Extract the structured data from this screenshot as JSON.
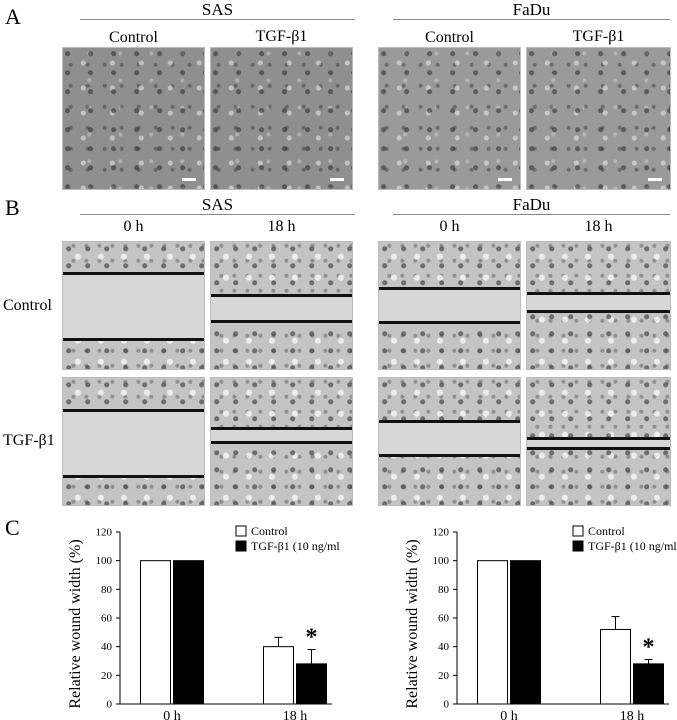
{
  "panels": {
    "a": {
      "letter": "A",
      "groups": [
        {
          "title": "SAS",
          "columns": [
            "Control",
            "TGF-β1"
          ]
        },
        {
          "title": "FaDu",
          "columns": [
            "Control",
            "TGF-β1"
          ]
        }
      ]
    },
    "b": {
      "letter": "B",
      "groups": [
        {
          "title": "SAS",
          "columns": [
            "0 h",
            "18 h"
          ]
        },
        {
          "title": "FaDu",
          "columns": [
            "0 h",
            "18 h"
          ]
        }
      ],
      "rows": [
        "Control",
        "TGF-β1"
      ]
    },
    "c": {
      "letter": "C"
    }
  },
  "chart_data": [
    {
      "type": "bar",
      "categories": [
        "0 h",
        "18 h"
      ],
      "series": [
        {
          "name": "Control",
          "values": [
            100,
            40
          ],
          "errors": [
            0,
            6.5
          ],
          "color": "#ffffff"
        },
        {
          "name": "TGF-β1 (10 ng/ml)",
          "values": [
            100,
            28
          ],
          "errors": [
            0,
            10
          ],
          "color": "#000000"
        }
      ],
      "ylabel": "Relative wound width (%)",
      "ylim": [
        0,
        120
      ],
      "yticks": [
        "0",
        "20",
        "40",
        "60",
        "80",
        "100",
        "120"
      ],
      "annotations": [
        "*"
      ],
      "legend": "top-right",
      "grid": false
    },
    {
      "type": "bar",
      "categories": [
        "0 h",
        "18 h"
      ],
      "series": [
        {
          "name": "Control",
          "values": [
            100,
            52
          ],
          "errors": [
            0,
            9
          ],
          "color": "#ffffff"
        },
        {
          "name": "TGF-β1 (10 ng/ml)",
          "values": [
            100,
            28
          ],
          "errors": [
            0,
            3
          ],
          "color": "#000000"
        }
      ],
      "ylabel": "Relative wound width (%)",
      "ylim": [
        0,
        120
      ],
      "yticks": [
        "0",
        "20",
        "40",
        "60",
        "80",
        "100",
        "120"
      ],
      "annotations": [
        "*"
      ],
      "legend": "top-right",
      "grid": false
    }
  ]
}
